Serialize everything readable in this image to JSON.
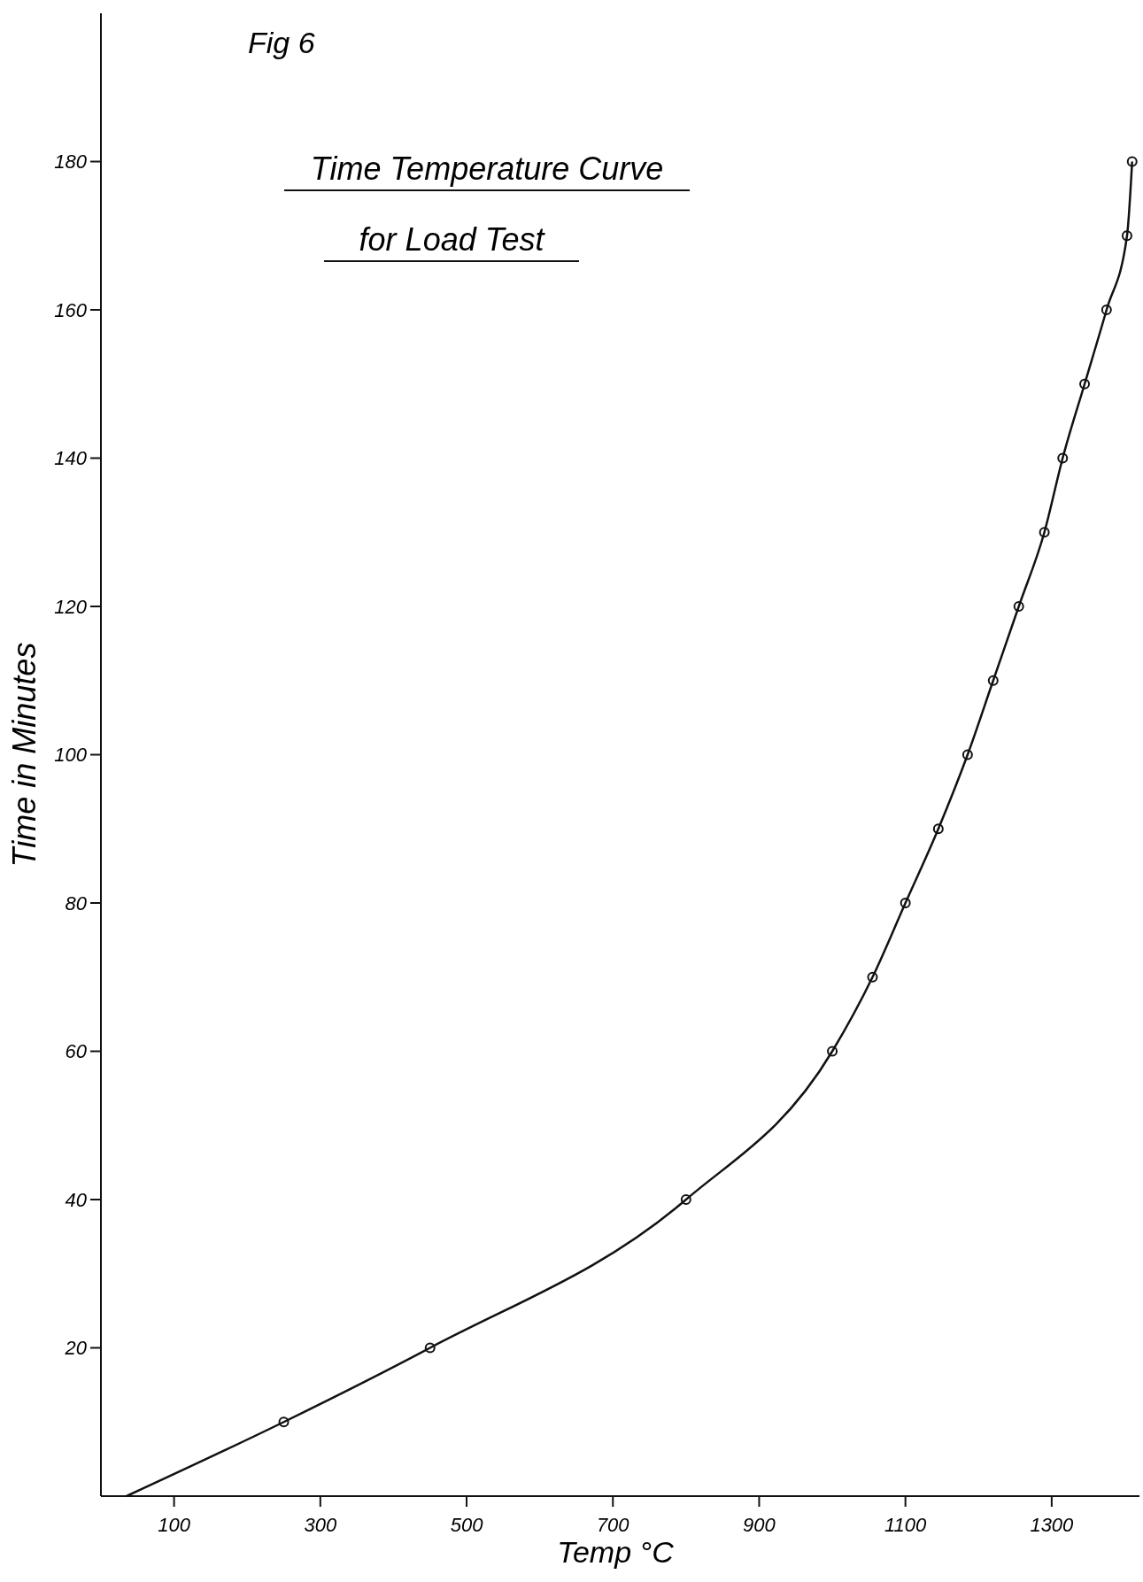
{
  "chart_data": {
    "type": "line",
    "title": "Time Temperature Curve for Load Test",
    "xlabel": "Temp °C",
    "ylabel": "Time in Minutes",
    "annotations": [
      "Fig 6"
    ],
    "xlim": [
      0,
      1420
    ],
    "ylim": [
      0,
      200
    ],
    "xticks": [
      100,
      300,
      500,
      700,
      900,
      1100,
      1300
    ],
    "yticks": [
      20,
      40,
      60,
      80,
      100,
      120,
      140,
      160,
      180
    ],
    "series": [
      {
        "color": "#111111",
        "marker": "none",
        "x": [
          35,
          250,
          450,
          800,
          1000,
          1055,
          1100,
          1145,
          1185,
          1220,
          1255,
          1290,
          1315,
          1345,
          1375,
          1403,
          1410
        ],
        "values": [
          0,
          10,
          20,
          40,
          60,
          70,
          80,
          90,
          100,
          110,
          120,
          130,
          140,
          150,
          160,
          170,
          180
        ]
      },
      {
        "type": "scatter",
        "color": "#111111",
        "marker": "circle",
        "x": [
          250,
          450,
          800,
          1000,
          1055,
          1100,
          1145,
          1185,
          1220,
          1255,
          1290,
          1315,
          1345,
          1375,
          1403,
          1410
        ],
        "values": [
          10,
          20,
          40,
          60,
          70,
          80,
          90,
          100,
          110,
          120,
          130,
          140,
          150,
          160,
          170,
          180
        ]
      }
    ]
  }
}
